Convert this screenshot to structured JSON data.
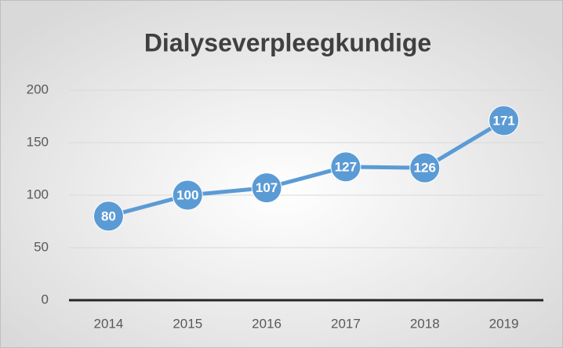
{
  "chart_data": {
    "type": "line",
    "title": "Dialyseverpleegkundige",
    "categories": [
      "2014",
      "2015",
      "2016",
      "2017",
      "2018",
      "2019"
    ],
    "values": [
      80,
      100,
      107,
      127,
      126,
      171
    ],
    "color": "#5b9bd5",
    "ylim": [
      0,
      200
    ],
    "yticks": [
      0,
      50,
      100,
      150,
      200
    ],
    "grid": true
  }
}
